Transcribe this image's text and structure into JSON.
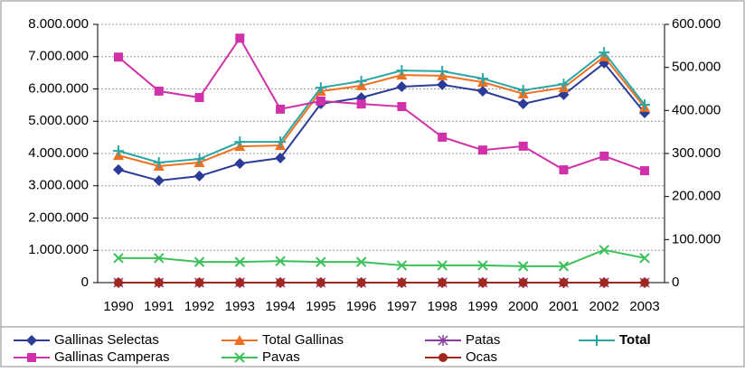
{
  "chart_data": {
    "type": "line",
    "categories": [
      "1990",
      "1991",
      "1992",
      "1993",
      "1994",
      "1995",
      "1996",
      "1997",
      "1998",
      "1999",
      "2000",
      "2001",
      "2002",
      "2003"
    ],
    "ylim": [
      0,
      8000000
    ],
    "yticks": [
      {
        "value": 0,
        "label": "0"
      },
      {
        "value": 1000000,
        "label": "1.000.000"
      },
      {
        "value": 2000000,
        "label": "2.000.000"
      },
      {
        "value": 3000000,
        "label": "3.000.000"
      },
      {
        "value": 4000000,
        "label": "4.000.000"
      },
      {
        "value": 5000000,
        "label": "5.000.000"
      },
      {
        "value": 6000000,
        "label": "6.000.000"
      },
      {
        "value": 7000000,
        "label": "7.000.000"
      },
      {
        "value": 8000000,
        "label": "8.000.000"
      }
    ],
    "y2lim": [
      0,
      600000
    ],
    "y2ticks": [
      {
        "value": 0,
        "label": "0"
      },
      {
        "value": 100000,
        "label": "100.000"
      },
      {
        "value": 200000,
        "label": "200.000"
      },
      {
        "value": 300000,
        "label": "300.000"
      },
      {
        "value": 400000,
        "label": "400.000"
      },
      {
        "value": 500000,
        "label": "500.000"
      },
      {
        "value": 600000,
        "label": "600.000"
      }
    ],
    "grid": true,
    "legend": "bottom",
    "series": [
      {
        "name": "Gallinas Selectas",
        "color": "#2b3c98",
        "marker": "diamond",
        "values": [
          3500000,
          3160000,
          3300000,
          3690000,
          3860000,
          5540000,
          5730000,
          6070000,
          6130000,
          5930000,
          5540000,
          5820000,
          6800000,
          5260000
        ]
      },
      {
        "name": "Total Gallinas",
        "color": "#f07020",
        "marker": "triangle",
        "values": [
          3940000,
          3610000,
          3720000,
          4220000,
          4250000,
          5930000,
          6100000,
          6430000,
          6410000,
          6210000,
          5850000,
          6040000,
          7000000,
          5430000
        ]
      },
      {
        "name": "Patas",
        "color": "#8a3c9c",
        "marker": "star",
        "axis": "y2",
        "values": [
          0,
          0,
          0,
          0,
          0,
          0,
          0,
          0,
          0,
          0,
          0,
          0,
          0,
          0
        ]
      },
      {
        "name": "Total",
        "color": "#2aa6a6",
        "marker": "plus",
        "values": [
          4080000,
          3720000,
          3830000,
          4360000,
          4360000,
          6040000,
          6240000,
          6570000,
          6550000,
          6320000,
          5960000,
          6150000,
          7130000,
          5510000
        ]
      },
      {
        "name": "Gallinas Camperas",
        "color": "#d030a8",
        "marker": "square",
        "axis": "y2",
        "values": [
          524000,
          445000,
          430000,
          568000,
          403000,
          422000,
          415000,
          409000,
          338000,
          308000,
          317000,
          262000,
          294000,
          260000
        ]
      },
      {
        "name": "Pavas",
        "color": "#3cc05a",
        "marker": "x",
        "axis": "y2",
        "values": [
          57000,
          57000,
          48000,
          48000,
          50000,
          48000,
          48000,
          40000,
          40000,
          40000,
          38000,
          38000,
          76000,
          57000
        ]
      },
      {
        "name": "Ocas",
        "color": "#a0281e",
        "marker": "circle",
        "values": [
          0,
          0,
          0,
          0,
          0,
          0,
          0,
          0,
          0,
          0,
          0,
          0,
          0,
          0
        ]
      }
    ]
  }
}
